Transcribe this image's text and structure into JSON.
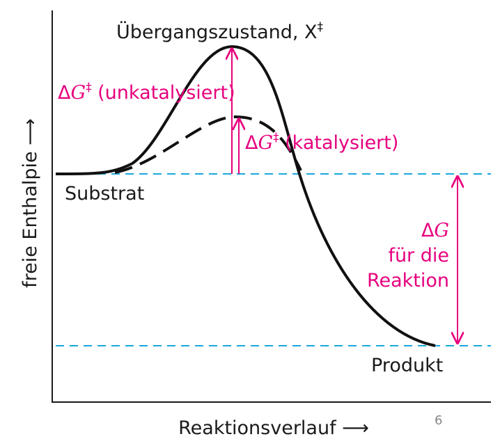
{
  "diagram": {
    "transition_state": {
      "text": "Übergangszustand, X",
      "sup": "‡"
    },
    "uncatalyzed": {
      "delta": "Δ",
      "var": "G",
      "sup": "‡",
      "text": " (unkatalysiert)"
    },
    "catalyzed": {
      "delta": "Δ",
      "var": "G",
      "sup": "‡",
      "text": " (katalysiert)"
    },
    "substrate": "Substrat",
    "product": "Produkt",
    "reaction_delta": {
      "delta": "Δ",
      "var": "G",
      "lines": [
        "für die",
        "Reaktion"
      ]
    },
    "y_axis_label": "freie Enthalpie ⟶",
    "x_axis_label": "Reaktionsverlauf ⟶",
    "page_number": "6"
  }
}
